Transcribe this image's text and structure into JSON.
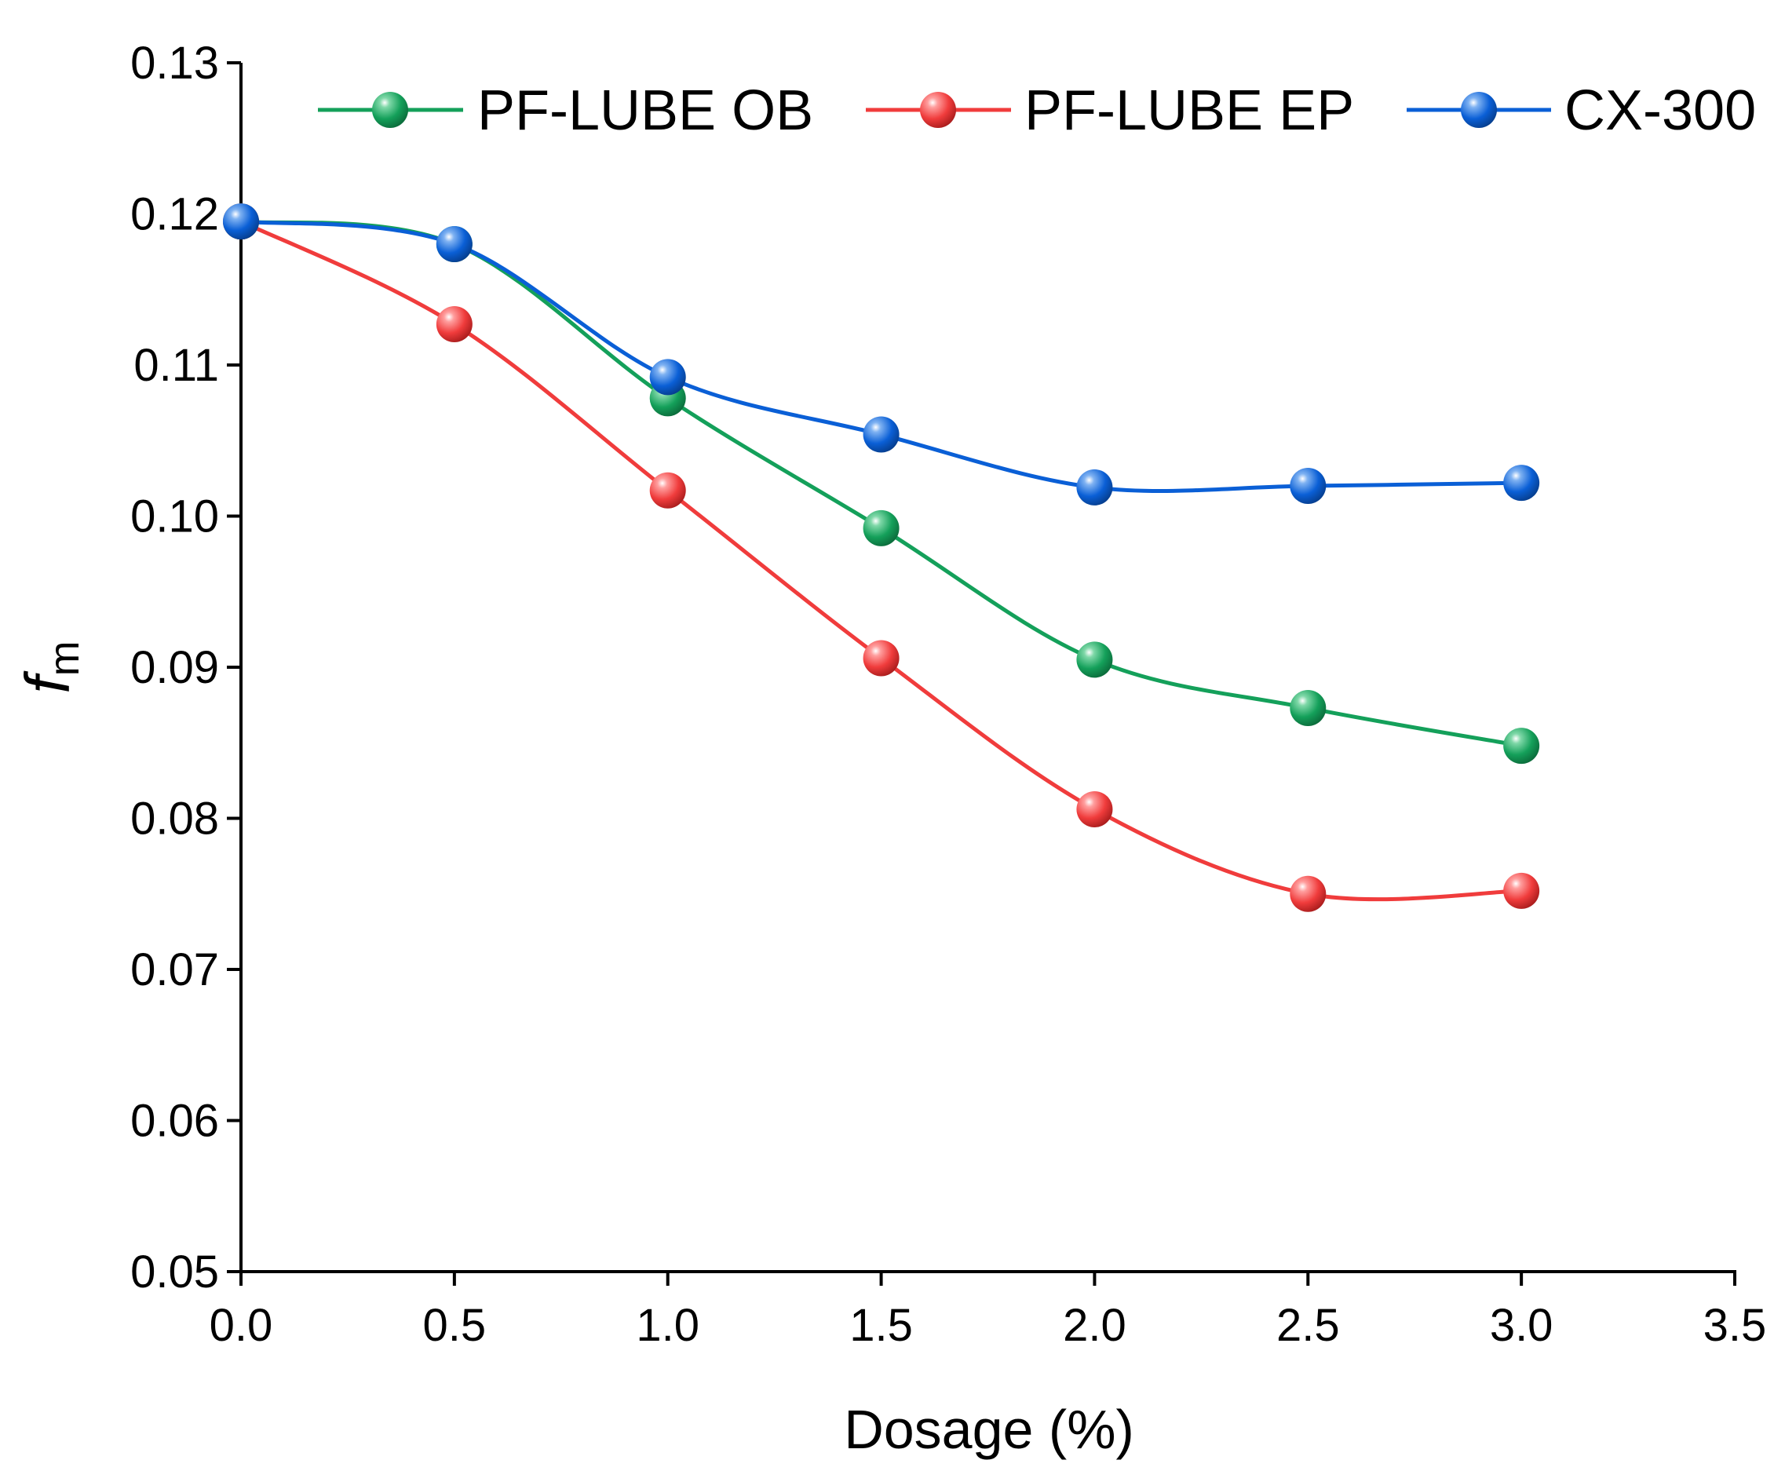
{
  "chart_data": {
    "type": "line",
    "title": "",
    "xlabel": "Dosage (%)",
    "ylabel": {
      "main": "f",
      "sub": "m"
    },
    "xlim": [
      0,
      3.5
    ],
    "ylim": [
      0.05,
      0.13
    ],
    "xticks": [
      {
        "value": 0.0,
        "label": "0.0"
      },
      {
        "value": 0.5,
        "label": "0.5"
      },
      {
        "value": 1.0,
        "label": "1.0"
      },
      {
        "value": 1.5,
        "label": "1.5"
      },
      {
        "value": 2.0,
        "label": "2.0"
      },
      {
        "value": 2.5,
        "label": "2.5"
      },
      {
        "value": 3.0,
        "label": "3.0"
      },
      {
        "value": 3.5,
        "label": "3.5"
      }
    ],
    "yticks": [
      {
        "value": 0.05,
        "label": "0.05"
      },
      {
        "value": 0.06,
        "label": "0.06"
      },
      {
        "value": 0.07,
        "label": "0.07"
      },
      {
        "value": 0.08,
        "label": "0.08"
      },
      {
        "value": 0.09,
        "label": "0.09"
      },
      {
        "value": 0.1,
        "label": "0.10"
      },
      {
        "value": 0.11,
        "label": "0.11"
      },
      {
        "value": 0.12,
        "label": "0.12"
      },
      {
        "value": 0.13,
        "label": "0.13"
      }
    ],
    "grid": false,
    "legend_position": "top",
    "x": [
      0.0,
      0.5,
      1.0,
      1.5,
      2.0,
      2.5,
      3.0
    ],
    "series": [
      {
        "name": "PF-LUBE OB",
        "color": "#14a05a",
        "values": [
          0.1195,
          0.118,
          0.1078,
          0.0992,
          0.0905,
          0.0873,
          0.0848
        ]
      },
      {
        "name": "PF-LUBE EP",
        "color": "#f03c3c",
        "values": [
          0.1195,
          0.1127,
          0.1017,
          0.0906,
          0.0806,
          0.075,
          0.0752
        ]
      },
      {
        "name": "CX-300",
        "color": "#0a5fd6",
        "values": [
          0.1195,
          0.118,
          0.1092,
          0.1054,
          0.1019,
          0.102,
          0.1022
        ]
      }
    ]
  }
}
